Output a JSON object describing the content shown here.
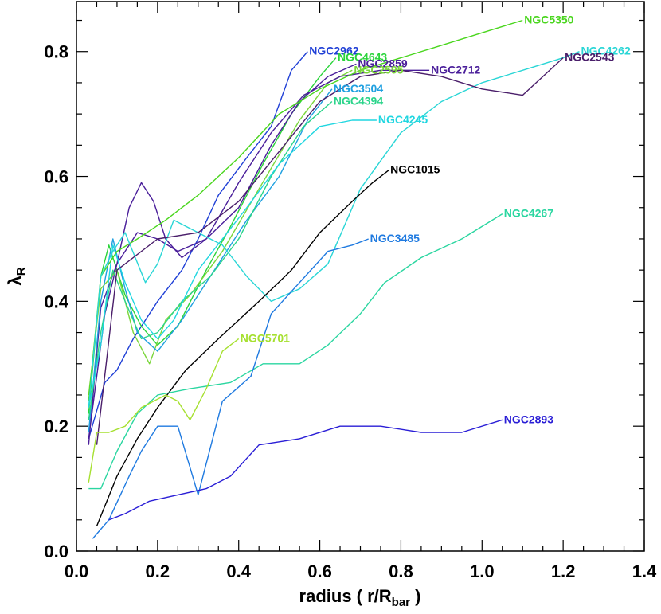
{
  "chart_data": {
    "type": "line",
    "title": "",
    "xlabel": "radius ( r/R",
    "xlabel_sub": "bar",
    "xlabel_end": " )",
    "ylabel": "λ",
    "ylabel_sub": "R",
    "xlim": [
      0.0,
      1.4
    ],
    "ylim": [
      0.0,
      0.88
    ],
    "x_ticks": [
      0.0,
      0.2,
      0.4,
      0.6,
      0.8,
      1.0,
      1.2,
      1.4
    ],
    "x_tick_labels": [
      "0.0",
      "0.2",
      "0.4",
      "0.6",
      "0.8",
      "1.0",
      "1.2",
      "1.4"
    ],
    "y_ticks": [
      0.0,
      0.2,
      0.4,
      0.6,
      0.8
    ],
    "y_tick_labels": [
      "0.0",
      "0.2",
      "0.4",
      "0.6",
      "0.8"
    ],
    "grid": false,
    "legend": "inline labels at line ends",
    "series": [
      {
        "name": "NGC2962",
        "color": "#1f3fd6",
        "label_at": [
          0.57,
          0.8
        ],
        "points": [
          [
            0.03,
            0.18
          ],
          [
            0.07,
            0.27
          ],
          [
            0.1,
            0.29
          ],
          [
            0.14,
            0.34
          ],
          [
            0.2,
            0.4
          ],
          [
            0.26,
            0.45
          ],
          [
            0.3,
            0.5
          ],
          [
            0.35,
            0.57
          ],
          [
            0.42,
            0.63
          ],
          [
            0.48,
            0.68
          ],
          [
            0.53,
            0.77
          ],
          [
            0.57,
            0.8
          ]
        ]
      },
      {
        "name": "NGC4643",
        "color": "#2ad43a",
        "label_at": [
          0.64,
          0.79
        ],
        "points": [
          [
            0.03,
            0.22
          ],
          [
            0.06,
            0.44
          ],
          [
            0.08,
            0.49
          ],
          [
            0.12,
            0.41
          ],
          [
            0.16,
            0.36
          ],
          [
            0.2,
            0.33
          ],
          [
            0.25,
            0.36
          ],
          [
            0.32,
            0.45
          ],
          [
            0.38,
            0.52
          ],
          [
            0.46,
            0.62
          ],
          [
            0.53,
            0.7
          ],
          [
            0.6,
            0.76
          ],
          [
            0.64,
            0.79
          ]
        ]
      },
      {
        "name": "NGC2859",
        "color": "#4a1e9a",
        "label_at": [
          0.69,
          0.78
        ],
        "points": [
          [
            0.03,
            0.17
          ],
          [
            0.06,
            0.39
          ],
          [
            0.1,
            0.46
          ],
          [
            0.15,
            0.51
          ],
          [
            0.2,
            0.5
          ],
          [
            0.25,
            0.48
          ],
          [
            0.32,
            0.5
          ],
          [
            0.4,
            0.55
          ],
          [
            0.48,
            0.65
          ],
          [
            0.55,
            0.72
          ],
          [
            0.62,
            0.76
          ],
          [
            0.69,
            0.78
          ]
        ]
      },
      {
        "name": "NGC2595",
        "color": "#7ad63a",
        "label_at": [
          0.68,
          0.77
        ],
        "points": [
          [
            0.03,
            0.25
          ],
          [
            0.06,
            0.42
          ],
          [
            0.1,
            0.45
          ],
          [
            0.14,
            0.35
          ],
          [
            0.18,
            0.3
          ],
          [
            0.22,
            0.37
          ],
          [
            0.28,
            0.41
          ],
          [
            0.36,
            0.48
          ],
          [
            0.45,
            0.58
          ],
          [
            0.55,
            0.69
          ],
          [
            0.62,
            0.75
          ],
          [
            0.68,
            0.77
          ]
        ]
      },
      {
        "name": "NGC2712",
        "color": "#4a1e9a",
        "label_at": [
          0.87,
          0.77
        ],
        "points": [
          [
            0.03,
            0.18
          ],
          [
            0.07,
            0.38
          ],
          [
            0.1,
            0.46
          ],
          [
            0.13,
            0.55
          ],
          [
            0.16,
            0.59
          ],
          [
            0.19,
            0.56
          ],
          [
            0.22,
            0.5
          ],
          [
            0.26,
            0.47
          ],
          [
            0.32,
            0.5
          ],
          [
            0.4,
            0.59
          ],
          [
            0.48,
            0.67
          ],
          [
            0.56,
            0.73
          ],
          [
            0.65,
            0.76
          ],
          [
            0.75,
            0.77
          ],
          [
            0.87,
            0.77
          ]
        ]
      },
      {
        "name": "NGC3504",
        "color": "#1fa0e0",
        "label_at": [
          0.63,
          0.74
        ],
        "points": [
          [
            0.03,
            0.19
          ],
          [
            0.06,
            0.4
          ],
          [
            0.09,
            0.5
          ],
          [
            0.12,
            0.42
          ],
          [
            0.15,
            0.35
          ],
          [
            0.2,
            0.32
          ],
          [
            0.26,
            0.37
          ],
          [
            0.34,
            0.45
          ],
          [
            0.42,
            0.53
          ],
          [
            0.5,
            0.6
          ],
          [
            0.57,
            0.69
          ],
          [
            0.63,
            0.74
          ]
        ]
      },
      {
        "name": "NGC4394",
        "color": "#2ad48a",
        "label_at": [
          0.63,
          0.72
        ],
        "points": [
          [
            0.03,
            0.21
          ],
          [
            0.06,
            0.35
          ],
          [
            0.09,
            0.45
          ],
          [
            0.12,
            0.4
          ],
          [
            0.16,
            0.34
          ],
          [
            0.2,
            0.35
          ],
          [
            0.26,
            0.4
          ],
          [
            0.33,
            0.44
          ],
          [
            0.4,
            0.5
          ],
          [
            0.48,
            0.6
          ],
          [
            0.56,
            0.68
          ],
          [
            0.63,
            0.72
          ]
        ]
      },
      {
        "name": "NGC4245",
        "color": "#1fd6e0",
        "label_at": [
          0.74,
          0.69
        ],
        "points": [
          [
            0.03,
            0.23
          ],
          [
            0.06,
            0.33
          ],
          [
            0.09,
            0.49
          ],
          [
            0.12,
            0.43
          ],
          [
            0.16,
            0.37
          ],
          [
            0.2,
            0.34
          ],
          [
            0.24,
            0.37
          ],
          [
            0.3,
            0.45
          ],
          [
            0.36,
            0.5
          ],
          [
            0.42,
            0.55
          ],
          [
            0.5,
            0.62
          ],
          [
            0.6,
            0.68
          ],
          [
            0.68,
            0.69
          ],
          [
            0.74,
            0.69
          ]
        ]
      },
      {
        "name": "NGC5350",
        "color": "#4ad61e",
        "label_at": [
          1.1,
          0.85
        ],
        "points": [
          [
            0.03,
            0.24
          ],
          [
            0.06,
            0.44
          ],
          [
            0.1,
            0.48
          ],
          [
            0.15,
            0.5
          ],
          [
            0.22,
            0.53
          ],
          [
            0.3,
            0.57
          ],
          [
            0.4,
            0.63
          ],
          [
            0.5,
            0.7
          ],
          [
            0.6,
            0.74
          ],
          [
            0.7,
            0.77
          ],
          [
            0.8,
            0.79
          ],
          [
            0.9,
            0.81
          ],
          [
            1.0,
            0.83
          ],
          [
            1.1,
            0.85
          ]
        ]
      },
      {
        "name": "NGC4262",
        "color": "#2ad6d6",
        "label_at": [
          1.24,
          0.8
        ],
        "points": [
          [
            0.03,
            0.23
          ],
          [
            0.06,
            0.44
          ],
          [
            0.09,
            0.48
          ],
          [
            0.12,
            0.51
          ],
          [
            0.17,
            0.43
          ],
          [
            0.2,
            0.46
          ],
          [
            0.24,
            0.53
          ],
          [
            0.3,
            0.51
          ],
          [
            0.36,
            0.49
          ],
          [
            0.42,
            0.44
          ],
          [
            0.48,
            0.4
          ],
          [
            0.55,
            0.42
          ],
          [
            0.62,
            0.46
          ],
          [
            0.7,
            0.58
          ],
          [
            0.8,
            0.67
          ],
          [
            0.9,
            0.72
          ],
          [
            1.0,
            0.75
          ],
          [
            1.1,
            0.77
          ],
          [
            1.2,
            0.79
          ],
          [
            1.24,
            0.8
          ]
        ]
      },
      {
        "name": "NGC2543",
        "color": "#4a1e6a",
        "label_at": [
          1.2,
          0.79
        ],
        "points": [
          [
            0.05,
            0.17
          ],
          [
            0.1,
            0.45
          ],
          [
            0.2,
            0.5
          ],
          [
            0.3,
            0.51
          ],
          [
            0.4,
            0.56
          ],
          [
            0.5,
            0.64
          ],
          [
            0.6,
            0.72
          ],
          [
            0.7,
            0.76
          ],
          [
            0.8,
            0.77
          ],
          [
            0.9,
            0.76
          ],
          [
            1.0,
            0.74
          ],
          [
            1.1,
            0.73
          ],
          [
            1.2,
            0.79
          ]
        ]
      },
      {
        "name": "NGC1015",
        "color": "#000000",
        "label_at": [
          0.77,
          0.61
        ],
        "points": [
          [
            0.05,
            0.04
          ],
          [
            0.1,
            0.12
          ],
          [
            0.15,
            0.18
          ],
          [
            0.2,
            0.23
          ],
          [
            0.27,
            0.29
          ],
          [
            0.35,
            0.34
          ],
          [
            0.45,
            0.4
          ],
          [
            0.53,
            0.45
          ],
          [
            0.6,
            0.51
          ],
          [
            0.68,
            0.56
          ],
          [
            0.73,
            0.59
          ],
          [
            0.77,
            0.61
          ]
        ]
      },
      {
        "name": "NGC4267",
        "color": "#2ad6a0",
        "label_at": [
          1.05,
          0.54
        ],
        "points": [
          [
            0.03,
            0.1
          ],
          [
            0.06,
            0.1
          ],
          [
            0.1,
            0.16
          ],
          [
            0.15,
            0.22
          ],
          [
            0.2,
            0.25
          ],
          [
            0.28,
            0.26
          ],
          [
            0.38,
            0.27
          ],
          [
            0.46,
            0.3
          ],
          [
            0.55,
            0.3
          ],
          [
            0.62,
            0.33
          ],
          [
            0.7,
            0.38
          ],
          [
            0.76,
            0.43
          ],
          [
            0.85,
            0.47
          ],
          [
            0.95,
            0.5
          ],
          [
            1.05,
            0.54
          ]
        ]
      },
      {
        "name": "NGC3485",
        "color": "#1f7ae0",
        "label_at": [
          0.72,
          0.5
        ],
        "points": [
          [
            0.04,
            0.02
          ],
          [
            0.08,
            0.05
          ],
          [
            0.13,
            0.12
          ],
          [
            0.16,
            0.16
          ],
          [
            0.2,
            0.2
          ],
          [
            0.25,
            0.2
          ],
          [
            0.3,
            0.09
          ],
          [
            0.36,
            0.24
          ],
          [
            0.43,
            0.28
          ],
          [
            0.48,
            0.38
          ],
          [
            0.55,
            0.43
          ],
          [
            0.62,
            0.48
          ],
          [
            0.68,
            0.49
          ],
          [
            0.72,
            0.5
          ]
        ]
      },
      {
        "name": "NGC5701",
        "color": "#a6e030",
        "label_at": [
          0.4,
          0.34
        ],
        "points": [
          [
            0.03,
            0.11
          ],
          [
            0.05,
            0.19
          ],
          [
            0.08,
            0.19
          ],
          [
            0.12,
            0.2
          ],
          [
            0.16,
            0.23
          ],
          [
            0.22,
            0.25
          ],
          [
            0.25,
            0.24
          ],
          [
            0.28,
            0.21
          ],
          [
            0.32,
            0.26
          ],
          [
            0.36,
            0.32
          ],
          [
            0.4,
            0.34
          ]
        ]
      },
      {
        "name": "NGC2893",
        "color": "#2a1ed6",
        "label_at": [
          1.05,
          0.21
        ],
        "points": [
          [
            0.08,
            0.05
          ],
          [
            0.12,
            0.06
          ],
          [
            0.18,
            0.08
          ],
          [
            0.25,
            0.09
          ],
          [
            0.32,
            0.1
          ],
          [
            0.38,
            0.12
          ],
          [
            0.45,
            0.17
          ],
          [
            0.55,
            0.18
          ],
          [
            0.65,
            0.2
          ],
          [
            0.75,
            0.2
          ],
          [
            0.85,
            0.19
          ],
          [
            0.95,
            0.19
          ],
          [
            1.05,
            0.21
          ]
        ]
      }
    ]
  }
}
